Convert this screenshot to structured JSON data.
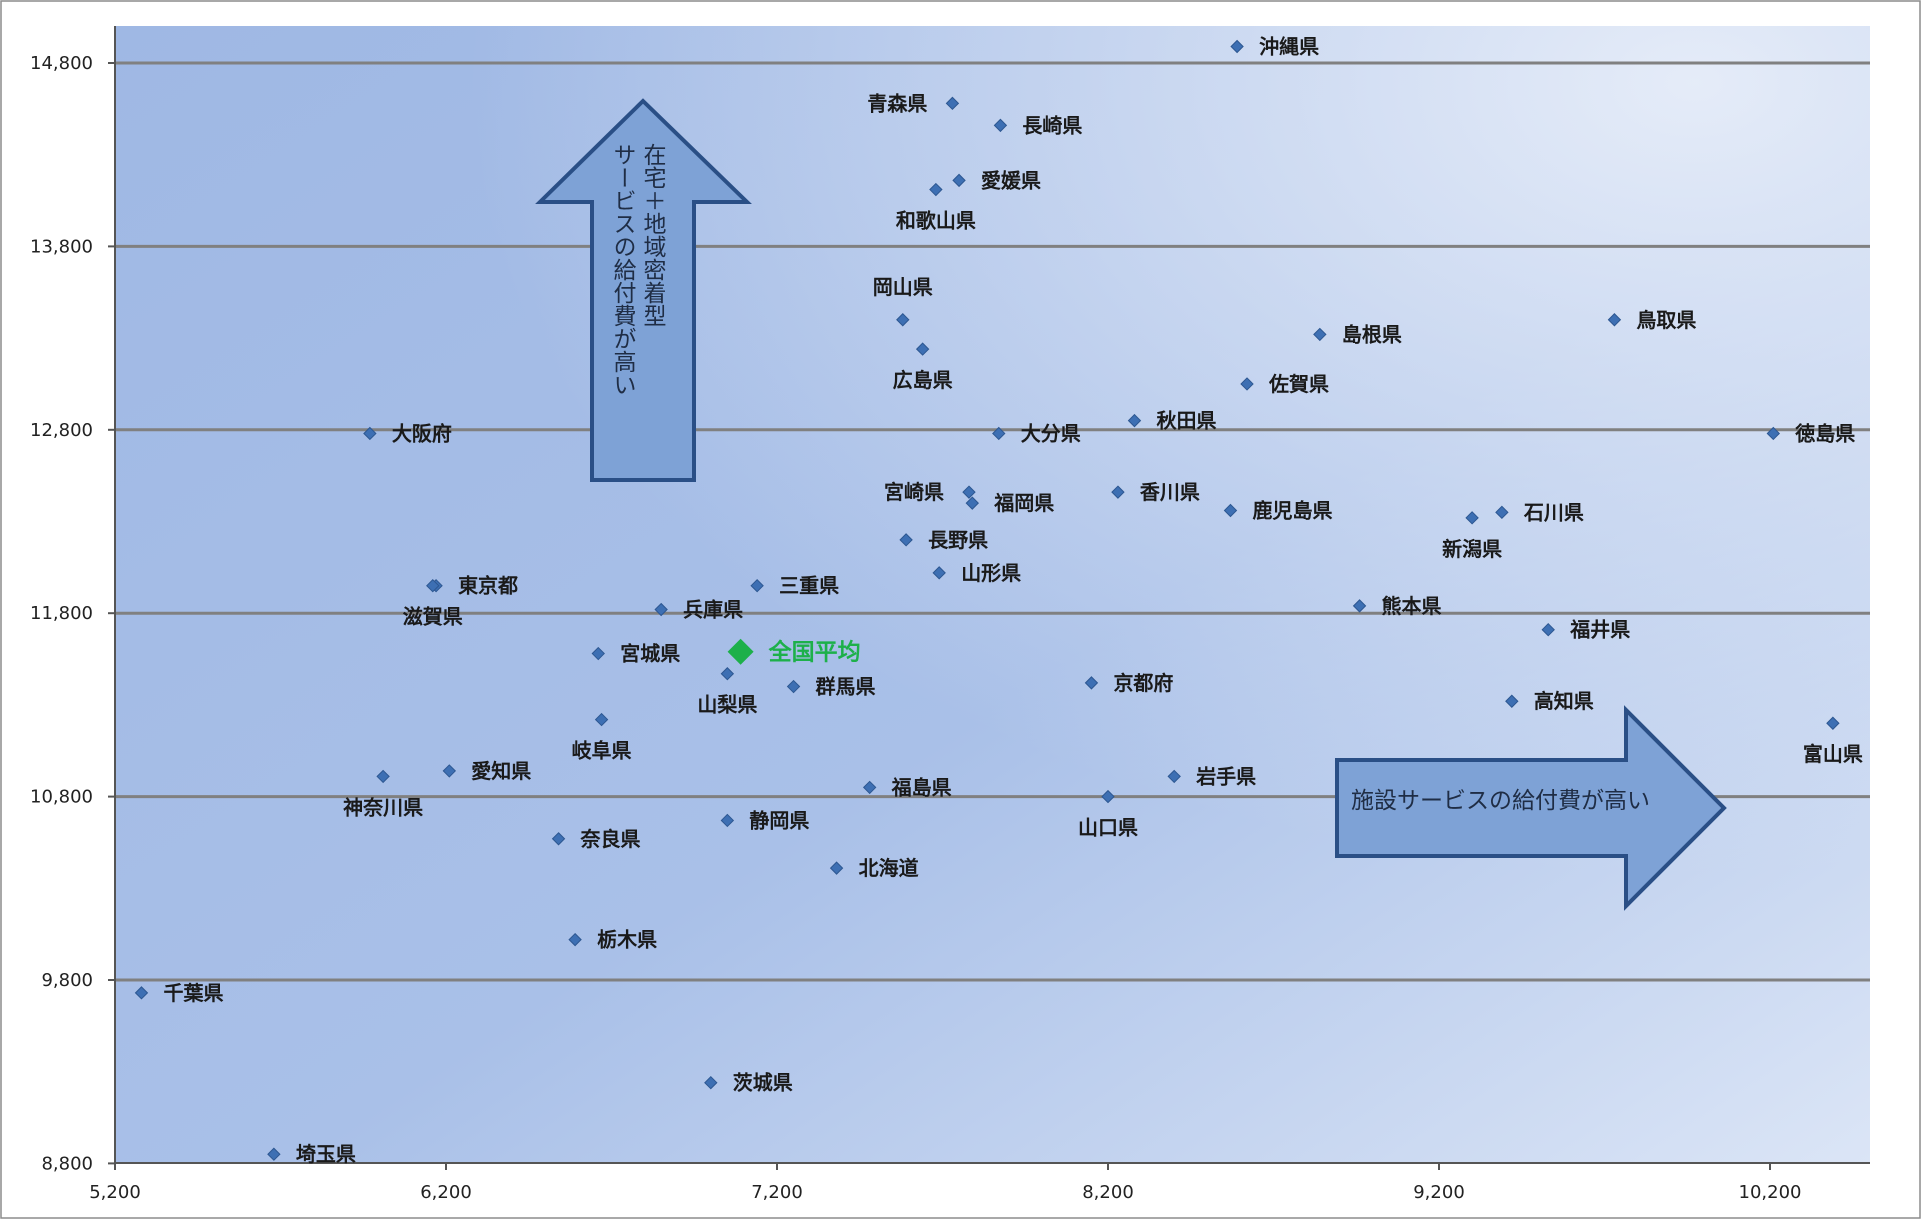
{
  "chart_data": {
    "type": "scatter",
    "xlim": [
      5200,
      10500
    ],
    "ylim": [
      8800,
      15000
    ],
    "x_ticks": [
      "5,200",
      "6,200",
      "7,200",
      "8,200",
      "9,200",
      "10,200"
    ],
    "y_ticks": [
      "14,800",
      "13,800",
      "12,800",
      "11,800",
      "10,800",
      "9,800",
      "8,800"
    ],
    "grid": "horizontal",
    "colors": {
      "point": "#3d6fb3",
      "average": "#1db04a",
      "arrow_fill": "#7ea2d6",
      "arrow_stroke": "#2a4f86",
      "gridline": "#808080"
    },
    "points": [
      {
        "label": "沖縄県",
        "x": 8590,
        "y": 14890
      },
      {
        "label": "青森県",
        "x": 7730,
        "y": 14580
      },
      {
        "label": "長崎県",
        "x": 7875,
        "y": 14460
      },
      {
        "label": "愛媛県",
        "x": 7750,
        "y": 14160
      },
      {
        "label": "和歌山県",
        "x": 7680,
        "y": 14110
      },
      {
        "label": "岡山県",
        "x": 7580,
        "y": 13400
      },
      {
        "label": "広島県",
        "x": 7640,
        "y": 13240
      },
      {
        "label": "島根県",
        "x": 8840,
        "y": 13320
      },
      {
        "label": "鳥取県",
        "x": 9730,
        "y": 13400
      },
      {
        "label": "佐賀県",
        "x": 8620,
        "y": 13050
      },
      {
        "label": "秋田県",
        "x": 8280,
        "y": 12850
      },
      {
        "label": "大阪府",
        "x": 5970,
        "y": 12780
      },
      {
        "label": "大分県",
        "x": 7870,
        "y": 12780
      },
      {
        "label": "徳島県",
        "x": 10210,
        "y": 12780
      },
      {
        "label": "宮崎県",
        "x": 7780,
        "y": 12460
      },
      {
        "label": "福岡県",
        "x": 7790,
        "y": 12400
      },
      {
        "label": "香川県",
        "x": 8230,
        "y": 12460
      },
      {
        "label": "鹿児島県",
        "x": 8570,
        "y": 12360
      },
      {
        "label": "石川県",
        "x": 9390,
        "y": 12350
      },
      {
        "label": "新潟県",
        "x": 9300,
        "y": 12320
      },
      {
        "label": "長野県",
        "x": 7590,
        "y": 12200
      },
      {
        "label": "山形県",
        "x": 7690,
        "y": 12020
      },
      {
        "label": "東京都",
        "x": 6170,
        "y": 11950
      },
      {
        "label": "滋賀県",
        "x": 6160,
        "y": 11950
      },
      {
        "label": "三重県",
        "x": 7140,
        "y": 11950
      },
      {
        "label": "兵庫県",
        "x": 6850,
        "y": 11820
      },
      {
        "label": "熊本県",
        "x": 8960,
        "y": 11840
      },
      {
        "label": "福井県",
        "x": 9530,
        "y": 11710
      },
      {
        "label": "宮城県",
        "x": 6660,
        "y": 11580
      },
      {
        "label": "山梨県",
        "x": 7050,
        "y": 11470
      },
      {
        "label": "群馬県",
        "x": 7250,
        "y": 11400
      },
      {
        "label": "京都府",
        "x": 8150,
        "y": 11420
      },
      {
        "label": "高知県",
        "x": 9420,
        "y": 11320
      },
      {
        "label": "富山県",
        "x": 10390,
        "y": 11200
      },
      {
        "label": "岐阜県",
        "x": 6670,
        "y": 11220
      },
      {
        "label": "愛知県",
        "x": 6210,
        "y": 10940
      },
      {
        "label": "神奈川県",
        "x": 6010,
        "y": 10910
      },
      {
        "label": "福島県",
        "x": 7480,
        "y": 10850
      },
      {
        "label": "岩手県",
        "x": 8400,
        "y": 10910
      },
      {
        "label": "山口県",
        "x": 8200,
        "y": 10800
      },
      {
        "label": "静岡県",
        "x": 7050,
        "y": 10670
      },
      {
        "label": "奈良県",
        "x": 6540,
        "y": 10570
      },
      {
        "label": "北海道",
        "x": 7380,
        "y": 10410
      },
      {
        "label": "栃木県",
        "x": 6590,
        "y": 10020
      },
      {
        "label": "千葉県",
        "x": 5280,
        "y": 9730
      },
      {
        "label": "茨城県",
        "x": 7000,
        "y": 9240
      },
      {
        "label": "埼玉県",
        "x": 5680,
        "y": 8850
      }
    ],
    "average": {
      "label": "全国平均",
      "x": 7090,
      "y": 11590
    },
    "annotations": {
      "up_arrow_text": [
        "在宅＋地域密着型",
        "サービスの給付費が高い"
      ],
      "right_arrow_text": "施設サービスの給付費が高い"
    }
  }
}
